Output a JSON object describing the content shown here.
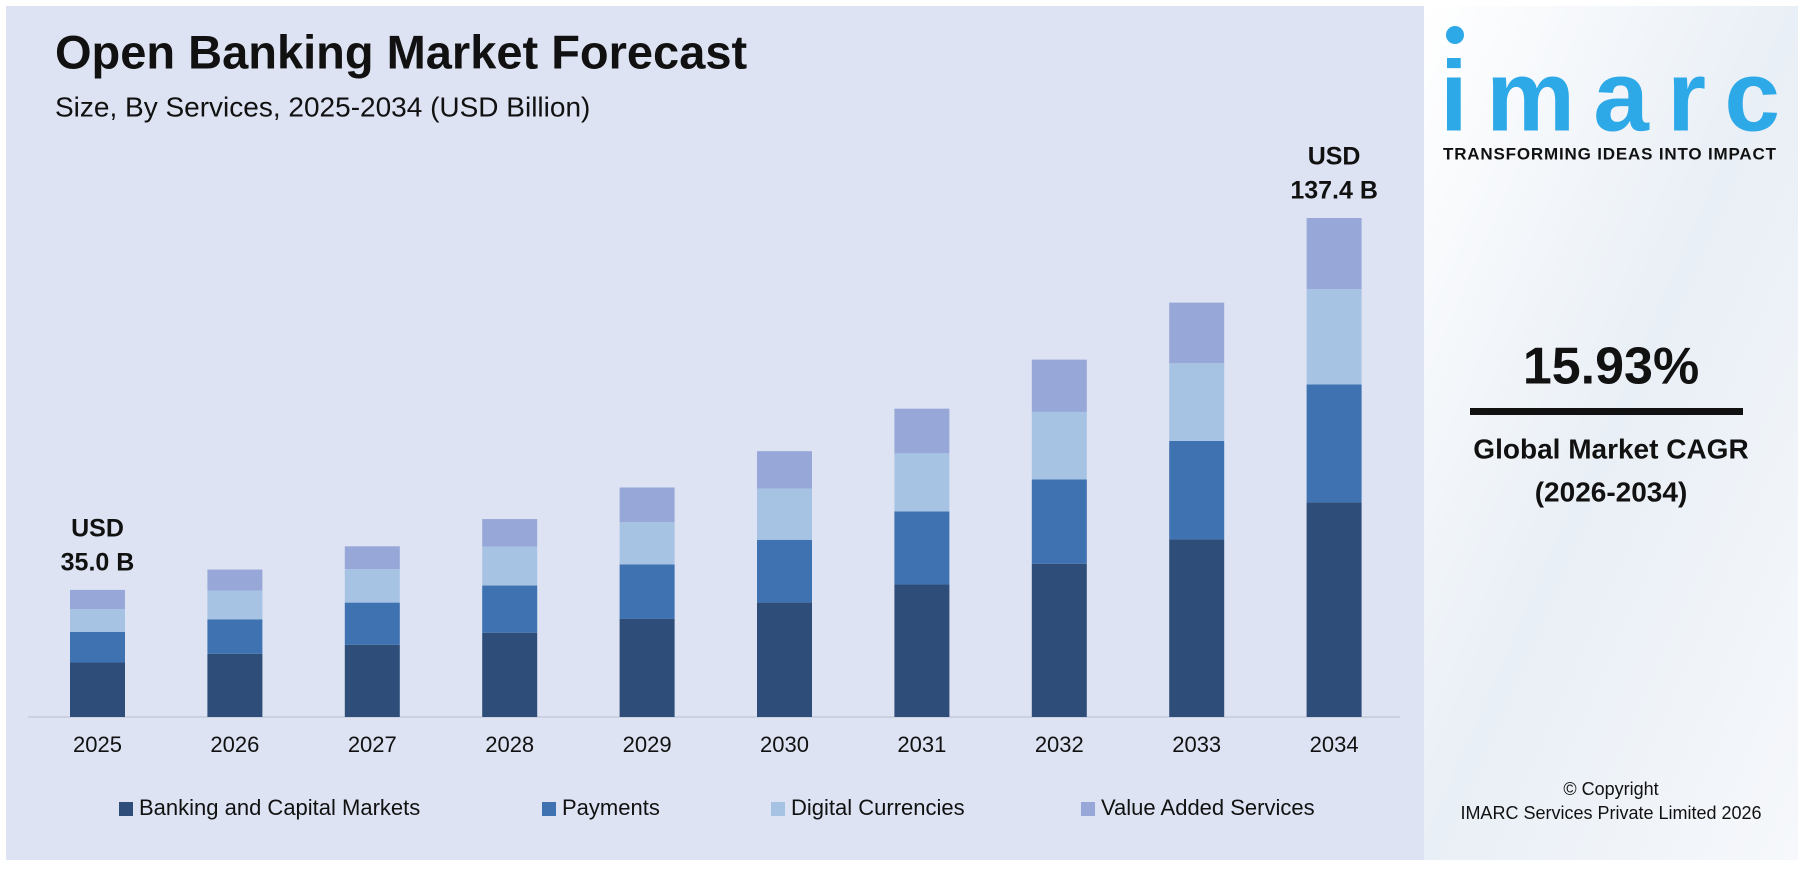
{
  "chart_data": {
    "type": "stacked-bar",
    "title": "Open Banking Market Forecast",
    "subtitle": "Size, By Services, 2025-2034 (USD Billion)",
    "categories": [
      "2025",
      "2026",
      "2027",
      "2028",
      "2029",
      "2030",
      "2031",
      "2032",
      "2033",
      "2034"
    ],
    "series": [
      {
        "name": "Banking and Capital Markets",
        "color": "#2e4e79",
        "values": [
          15.0,
          17.4,
          19.9,
          23.2,
          27.0,
          31.5,
          36.5,
          42.2,
          48.9,
          59.1
        ]
      },
      {
        "name": "Payments",
        "color": "#3f72b0",
        "values": [
          8.4,
          9.5,
          11.6,
          13.0,
          15.0,
          17.3,
          20.1,
          23.2,
          27.1,
          32.5
        ]
      },
      {
        "name": "Digital Currencies",
        "color": "#a7c3e4",
        "values": [
          6.3,
          7.9,
          9.2,
          10.7,
          11.7,
          14.1,
          16.0,
          18.6,
          21.4,
          26.2
        ]
      },
      {
        "name": "Value Added Services",
        "color": "#97a8d8",
        "values": [
          5.3,
          5.8,
          6.3,
          7.6,
          9.5,
          10.3,
          12.3,
          14.4,
          16.7,
          19.6
        ]
      }
    ],
    "annotations": [
      {
        "lines": [
          "USD",
          "35.0 B"
        ]
      },
      {
        "lines": [
          "USD",
          "137.4 B"
        ]
      }
    ],
    "legend": "bottom"
  },
  "sidebar": {
    "logo": "imarc",
    "tagline": "TRANSFORMING IDEAS INTO IMPACT",
    "cagr": "15.93%",
    "cagr_label": [
      "Global Market CAGR",
      "(2026-2034)"
    ],
    "copyright": [
      "© Copyright",
      "IMARC Services Private Limited 2026"
    ]
  }
}
